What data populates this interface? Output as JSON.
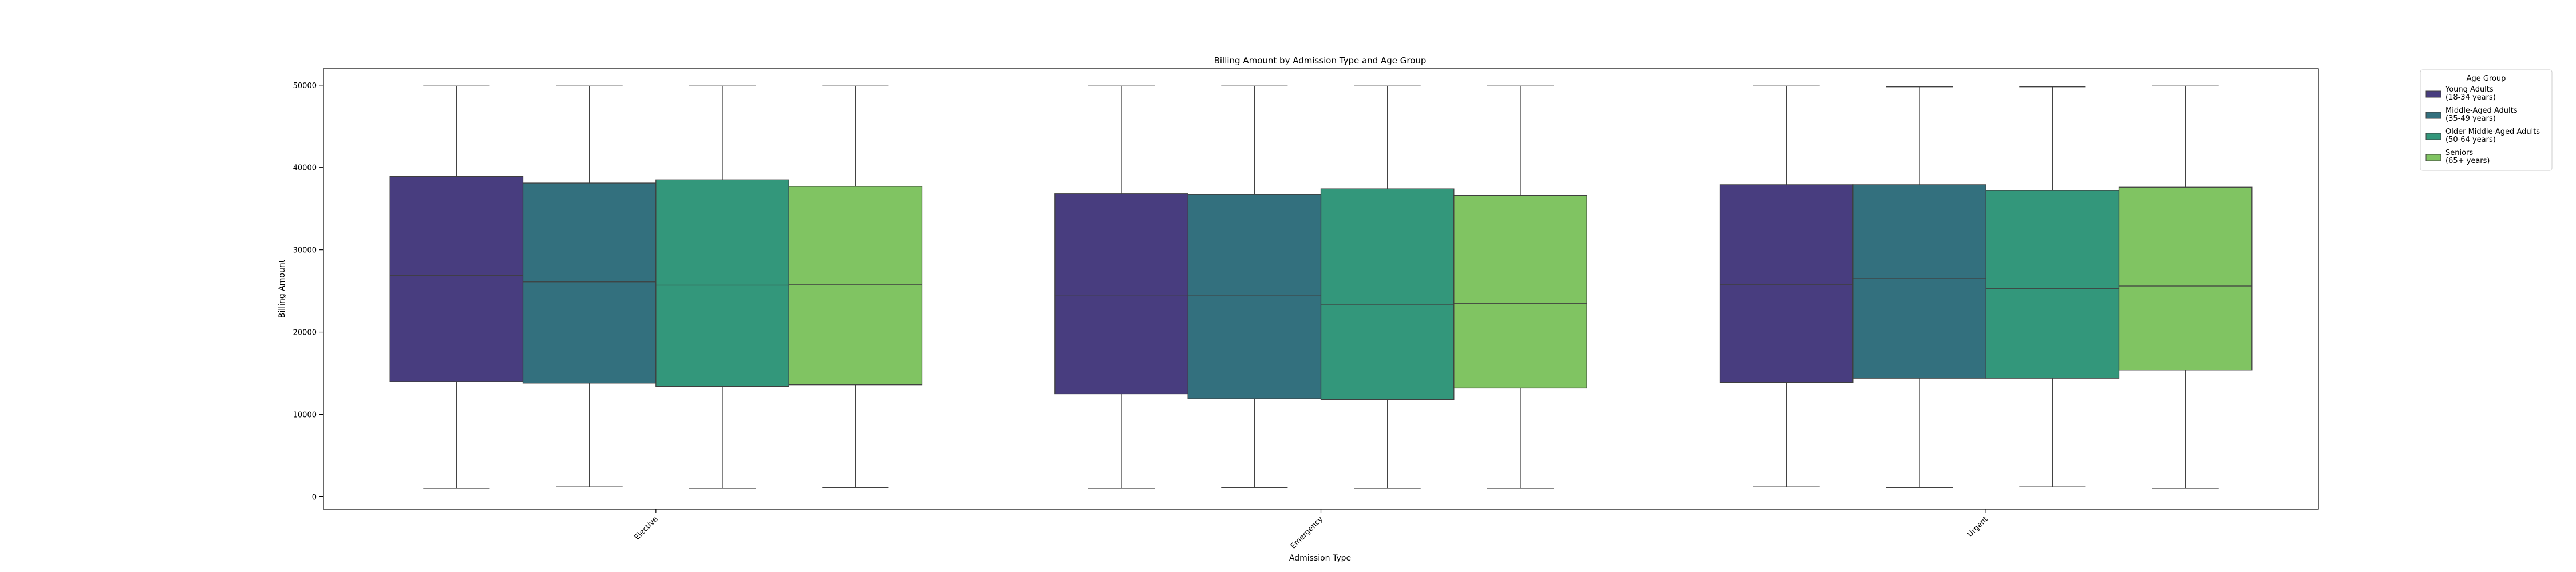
{
  "chart_data": {
    "type": "box",
    "title": "Billing Amount by Admission Type and Age Group",
    "xlabel": "Admission Type",
    "ylabel": "Billing Amount",
    "ylim": [
      -1500,
      52000
    ],
    "yticks": [
      0,
      10000,
      20000,
      30000,
      40000,
      50000
    ],
    "grid": false,
    "categories": [
      "Elective",
      "Emergency",
      "Urgent"
    ],
    "legend": {
      "title": "Age Group",
      "placement": "outside-right-top"
    },
    "series": [
      {
        "name": "Young Adults\n(18-34 years)",
        "color": "#483d7f",
        "boxes": [
          {
            "whislo": 1000,
            "q1": 14000,
            "med": 26900,
            "q3": 38900,
            "whishi": 49900
          },
          {
            "whislo": 1000,
            "q1": 12500,
            "med": 24400,
            "q3": 36800,
            "whishi": 49900
          },
          {
            "whislo": 1200,
            "q1": 13900,
            "med": 25800,
            "q3": 37900,
            "whishi": 49900
          }
        ]
      },
      {
        "name": "Middle-Aged Adults\n(35-49 years)",
        "color": "#33707e",
        "boxes": [
          {
            "whislo": 1200,
            "q1": 13800,
            "med": 26100,
            "q3": 38100,
            "whishi": 49900
          },
          {
            "whislo": 1100,
            "q1": 11900,
            "med": 24500,
            "q3": 36700,
            "whishi": 49900
          },
          {
            "whislo": 1100,
            "q1": 14400,
            "med": 26500,
            "q3": 37900,
            "whishi": 49800
          }
        ]
      },
      {
        "name": "Older Middle-Aged Adults\n(50-64 years)",
        "color": "#33977b",
        "boxes": [
          {
            "whislo": 1000,
            "q1": 13400,
            "med": 25700,
            "q3": 38500,
            "whishi": 49900
          },
          {
            "whislo": 1000,
            "q1": 11800,
            "med": 23300,
            "q3": 37400,
            "whishi": 49900
          },
          {
            "whislo": 1200,
            "q1": 14400,
            "med": 25300,
            "q3": 37200,
            "whishi": 49800
          }
        ]
      },
      {
        "name": "Seniors\n(65+ years)",
        "color": "#80c462",
        "boxes": [
          {
            "whislo": 1100,
            "q1": 13600,
            "med": 25800,
            "q3": 37700,
            "whishi": 49900
          },
          {
            "whislo": 1000,
            "q1": 13200,
            "med": 23500,
            "q3": 36600,
            "whishi": 49900
          },
          {
            "whislo": 1000,
            "q1": 15400,
            "med": 25600,
            "q3": 37600,
            "whishi": 49900
          }
        ]
      }
    ]
  }
}
